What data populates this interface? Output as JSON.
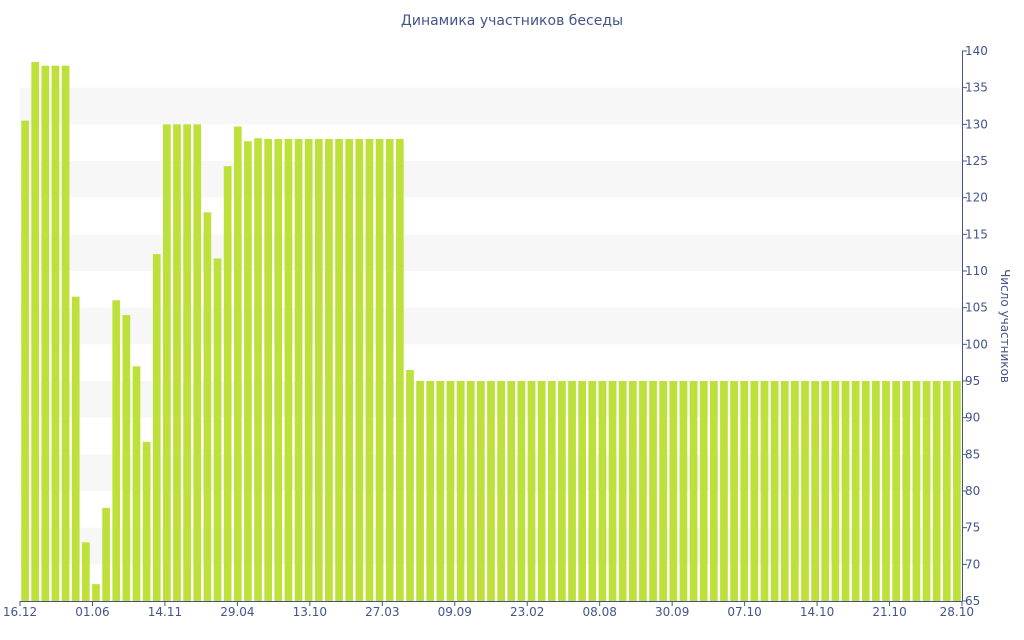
{
  "chart_data": {
    "type": "bar",
    "title": "Динамика участников беседы",
    "xlabel": "",
    "ylabel": "Число участников",
    "ylim": [
      65,
      140
    ],
    "yaxis_position": "right",
    "yticks": [
      65,
      70,
      75,
      80,
      85,
      90,
      95,
      100,
      105,
      110,
      115,
      120,
      125,
      130,
      135,
      140
    ],
    "xtick_labels": [
      "16.12",
      "01.06",
      "14.11",
      "29.04",
      "13.10",
      "27.03",
      "09.09",
      "23.02",
      "08.08",
      "30.09",
      "07.10",
      "14.10",
      "21.10",
      "28.10"
    ],
    "grid": "alternating horizontal bands",
    "bar_color": "#bde03a",
    "band_color": "#f7f7f7",
    "axis_color": "#44548a",
    "values": [
      130.5,
      138.5,
      138,
      138,
      138,
      106.5,
      73,
      67.3,
      77.7,
      106,
      104,
      97,
      86.7,
      112.3,
      130,
      130,
      130,
      130,
      118,
      111.7,
      124.3,
      129.7,
      127.7,
      128.1,
      128,
      128,
      128,
      128,
      128,
      128,
      128,
      128,
      128,
      128,
      128,
      128,
      128,
      128,
      96.5,
      95,
      95,
      95,
      95,
      95,
      95,
      95,
      95,
      95,
      95,
      95,
      95,
      95,
      95,
      95,
      95,
      95,
      95,
      95,
      95,
      95,
      95,
      95,
      95,
      95,
      95,
      95,
      95,
      95,
      95,
      95,
      95,
      95,
      95,
      95,
      95,
      95,
      95,
      95,
      95,
      95,
      95,
      95,
      95,
      95,
      95,
      95,
      95,
      95,
      95,
      95,
      95,
      95,
      95
    ]
  }
}
